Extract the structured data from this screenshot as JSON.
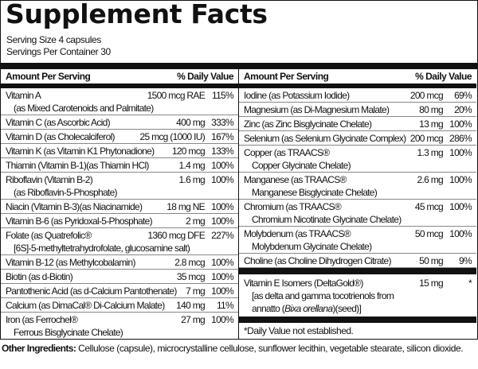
{
  "title": "Supplement Facts",
  "serving_size": "Serving Size 4 capsules",
  "servings_per_container": "Servings Per Container 30",
  "header": {
    "amount": "Amount Per Serving",
    "dv": "% Daily Value"
  },
  "left": [
    {
      "name": "Vitamin A",
      "sub": "(as Mixed Carotenoids and Palmitate)",
      "amount": "1500 mcg RAE",
      "dv": "115%"
    },
    {
      "name": "Vitamin C (as Ascorbic Acid)",
      "amount": "400 mg",
      "dv": "333%"
    },
    {
      "name": "Vitamin D (as Cholecalciferol)",
      "amount": "25 mcg (1000 IU)",
      "dv": "167%"
    },
    {
      "name": "Vitamin K (as Vitamin K1 Phytonadione)",
      "amount": "120 mcg",
      "dv": "133%"
    },
    {
      "name": "Thiamin (Vitamin B-1)(as Thiamin HCl)",
      "amount": "1.4 mg",
      "dv": "100%"
    },
    {
      "name": "Riboflavin (Vitamin B-2)",
      "sub": "(as Riboflavin-5-Phosphate)",
      "amount": "1.6 mg",
      "dv": "100%"
    },
    {
      "name": "Niacin (Vitamin B-3)(as Niacinamide)",
      "amount": "18 mg NE",
      "dv": "100%"
    },
    {
      "name": "Vitamin B-6 (as Pyridoxal-5-Phosphate)",
      "amount": "2 mg",
      "dv": "100%"
    },
    {
      "name": "Folate (as Quatrefolic®",
      "sub": "[6S]-5-methyltetrahydrofolate, glucosamine salt)",
      "amount": "1360 mcg DFE",
      "dv": "227%"
    },
    {
      "name": "Vitamin B-12 (as Methylcobalamin)",
      "amount": "2.8 mcg",
      "dv": "100%"
    },
    {
      "name": "Biotin (as d-Biotin)",
      "amount": "35 mcg",
      "dv": "100%"
    },
    {
      "name": "Pantothenic Acid (as d-Calcium Pantothenate)",
      "amount": "7 mg",
      "dv": "100%"
    },
    {
      "name": "Calcium (as DimaCal® Di-Calcium Malate)",
      "amount": "140 mg",
      "dv": "11%"
    },
    {
      "name": "Iron (as Ferrochel®",
      "sub": "Ferrous Bisglycinate Chelate)",
      "amount": "27 mg",
      "dv": "100%"
    }
  ],
  "right": [
    {
      "name": "Iodine (as Potassium Iodide)",
      "amount": "200 mcg",
      "dv": "69%"
    },
    {
      "name": "Magnesium (as Di-Magnesium Malate)",
      "amount": "80 mg",
      "dv": "20%"
    },
    {
      "name": "Zinc (as Zinc Bisglycinate Chelate)",
      "amount": "13 mg",
      "dv": "100%"
    },
    {
      "name": "Selenium (as Selenium Glycinate Complex)",
      "amount": "200 mcg",
      "dv": "286%"
    },
    {
      "name": "Copper (as TRAACS®",
      "sub": "Copper Glycinate Chelate)",
      "amount": "1.3 mg",
      "dv": "100%"
    },
    {
      "name": "Manganese (as TRAACS®",
      "sub": "Manganese Bisglycinate Chelate)",
      "amount": "2.6 mg",
      "dv": "100%"
    },
    {
      "name": "Chromium (as TRAACS®",
      "sub": "Chromium Nicotinate Glycinate Chelate)",
      "amount": "45 mcg",
      "dv": "100%"
    },
    {
      "name": "Molybdenum (as TRAACS®",
      "sub": "Molybdenum Glycinate Chelate)",
      "amount": "50 mcg",
      "dv": "100%"
    },
    {
      "name": "Choline (as Choline Dihydrogen Citrate)",
      "amount": "50 mg",
      "dv": "9%"
    }
  ],
  "vitamin_e": {
    "name": "Vitamin E Isomers (DeltaGold®)",
    "sub1": "[as delta  and gamma tocotrienols from",
    "sub2_pre": "annatto (",
    "sub2_italic": "Bixa orellana",
    "sub2_post": ")(seed)]",
    "amount": "15 mg",
    "dv": "*"
  },
  "footnote": "*Daily Value not established.",
  "other": {
    "label": "Other Ingredients:",
    "text": " Cellulose (capsule), microcrystalline cellulose, sunflower lecithin, vegetable stearate, silicon dioxide."
  }
}
